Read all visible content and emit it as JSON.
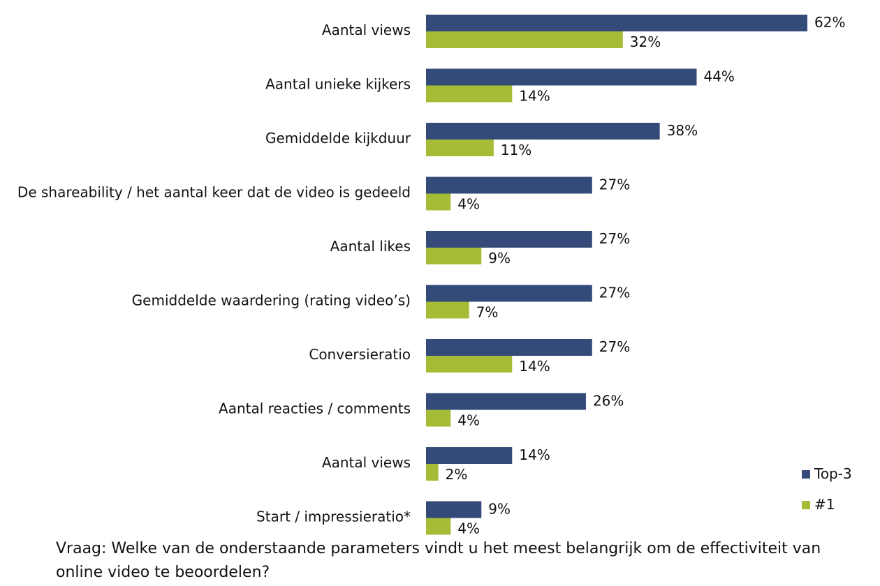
{
  "chart_data": {
    "type": "bar",
    "orientation": "horizontal",
    "categories": [
      "Aantal views",
      "Aantal unieke kijkers",
      "Gemiddelde kijkduur",
      "De shareability / het aantal keer dat de video is gedeeld",
      "Aantal likes",
      "Gemiddelde waardering (rating video’s)",
      "Conversieratio",
      "Aantal reacties / comments",
      "Aantal views",
      "Start / impressieratio*"
    ],
    "series": [
      {
        "name": "Top-3",
        "color": "#344a78",
        "values": [
          62,
          44,
          38,
          27,
          27,
          27,
          27,
          26,
          14,
          9
        ],
        "labels": [
          "62%",
          "44%",
          "38%",
          "27%",
          "27%",
          "27%",
          "27%",
          "26%",
          "14%",
          "9%"
        ]
      },
      {
        "name": "#1",
        "color": "#a5bd36",
        "values": [
          32,
          14,
          11,
          4,
          9,
          7,
          14,
          4,
          2,
          4
        ],
        "labels": [
          "32%",
          "14%",
          "11%",
          "4%",
          "9%",
          "7%",
          "14%",
          "4%",
          "2%",
          "4%"
        ]
      }
    ],
    "xlim": [
      0,
      62
    ],
    "grid": false,
    "legend_position": "bottom-right"
  },
  "question": "Vraag: Welke van de onderstaande parameters vindt u het meest belangrijk om de effectiviteit van online video te beoordelen?"
}
